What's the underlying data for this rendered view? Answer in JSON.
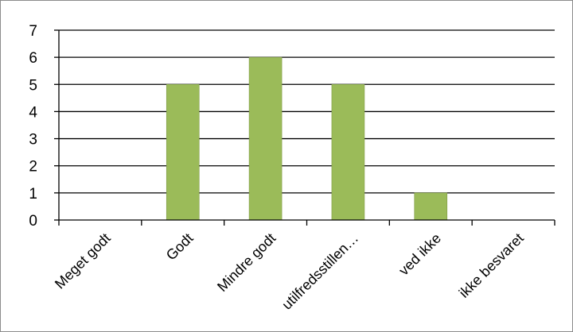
{
  "chart_data": {
    "type": "bar",
    "categories": [
      "Meget godt",
      "Godt",
      "Mindre godt",
      "utilfredsstillen…",
      "ved ikke",
      "ikke besvaret"
    ],
    "values": [
      0,
      5,
      6,
      5,
      1,
      0
    ],
    "title": "",
    "xlabel": "",
    "ylabel": "",
    "ylim": [
      0,
      7
    ],
    "yticks": [
      "0",
      "1",
      "2",
      "3",
      "4",
      "5",
      "6",
      "7"
    ],
    "grid": true,
    "legend": "none",
    "bar_color": "#9bbb59",
    "bar_border_color": "#7f9a46"
  }
}
